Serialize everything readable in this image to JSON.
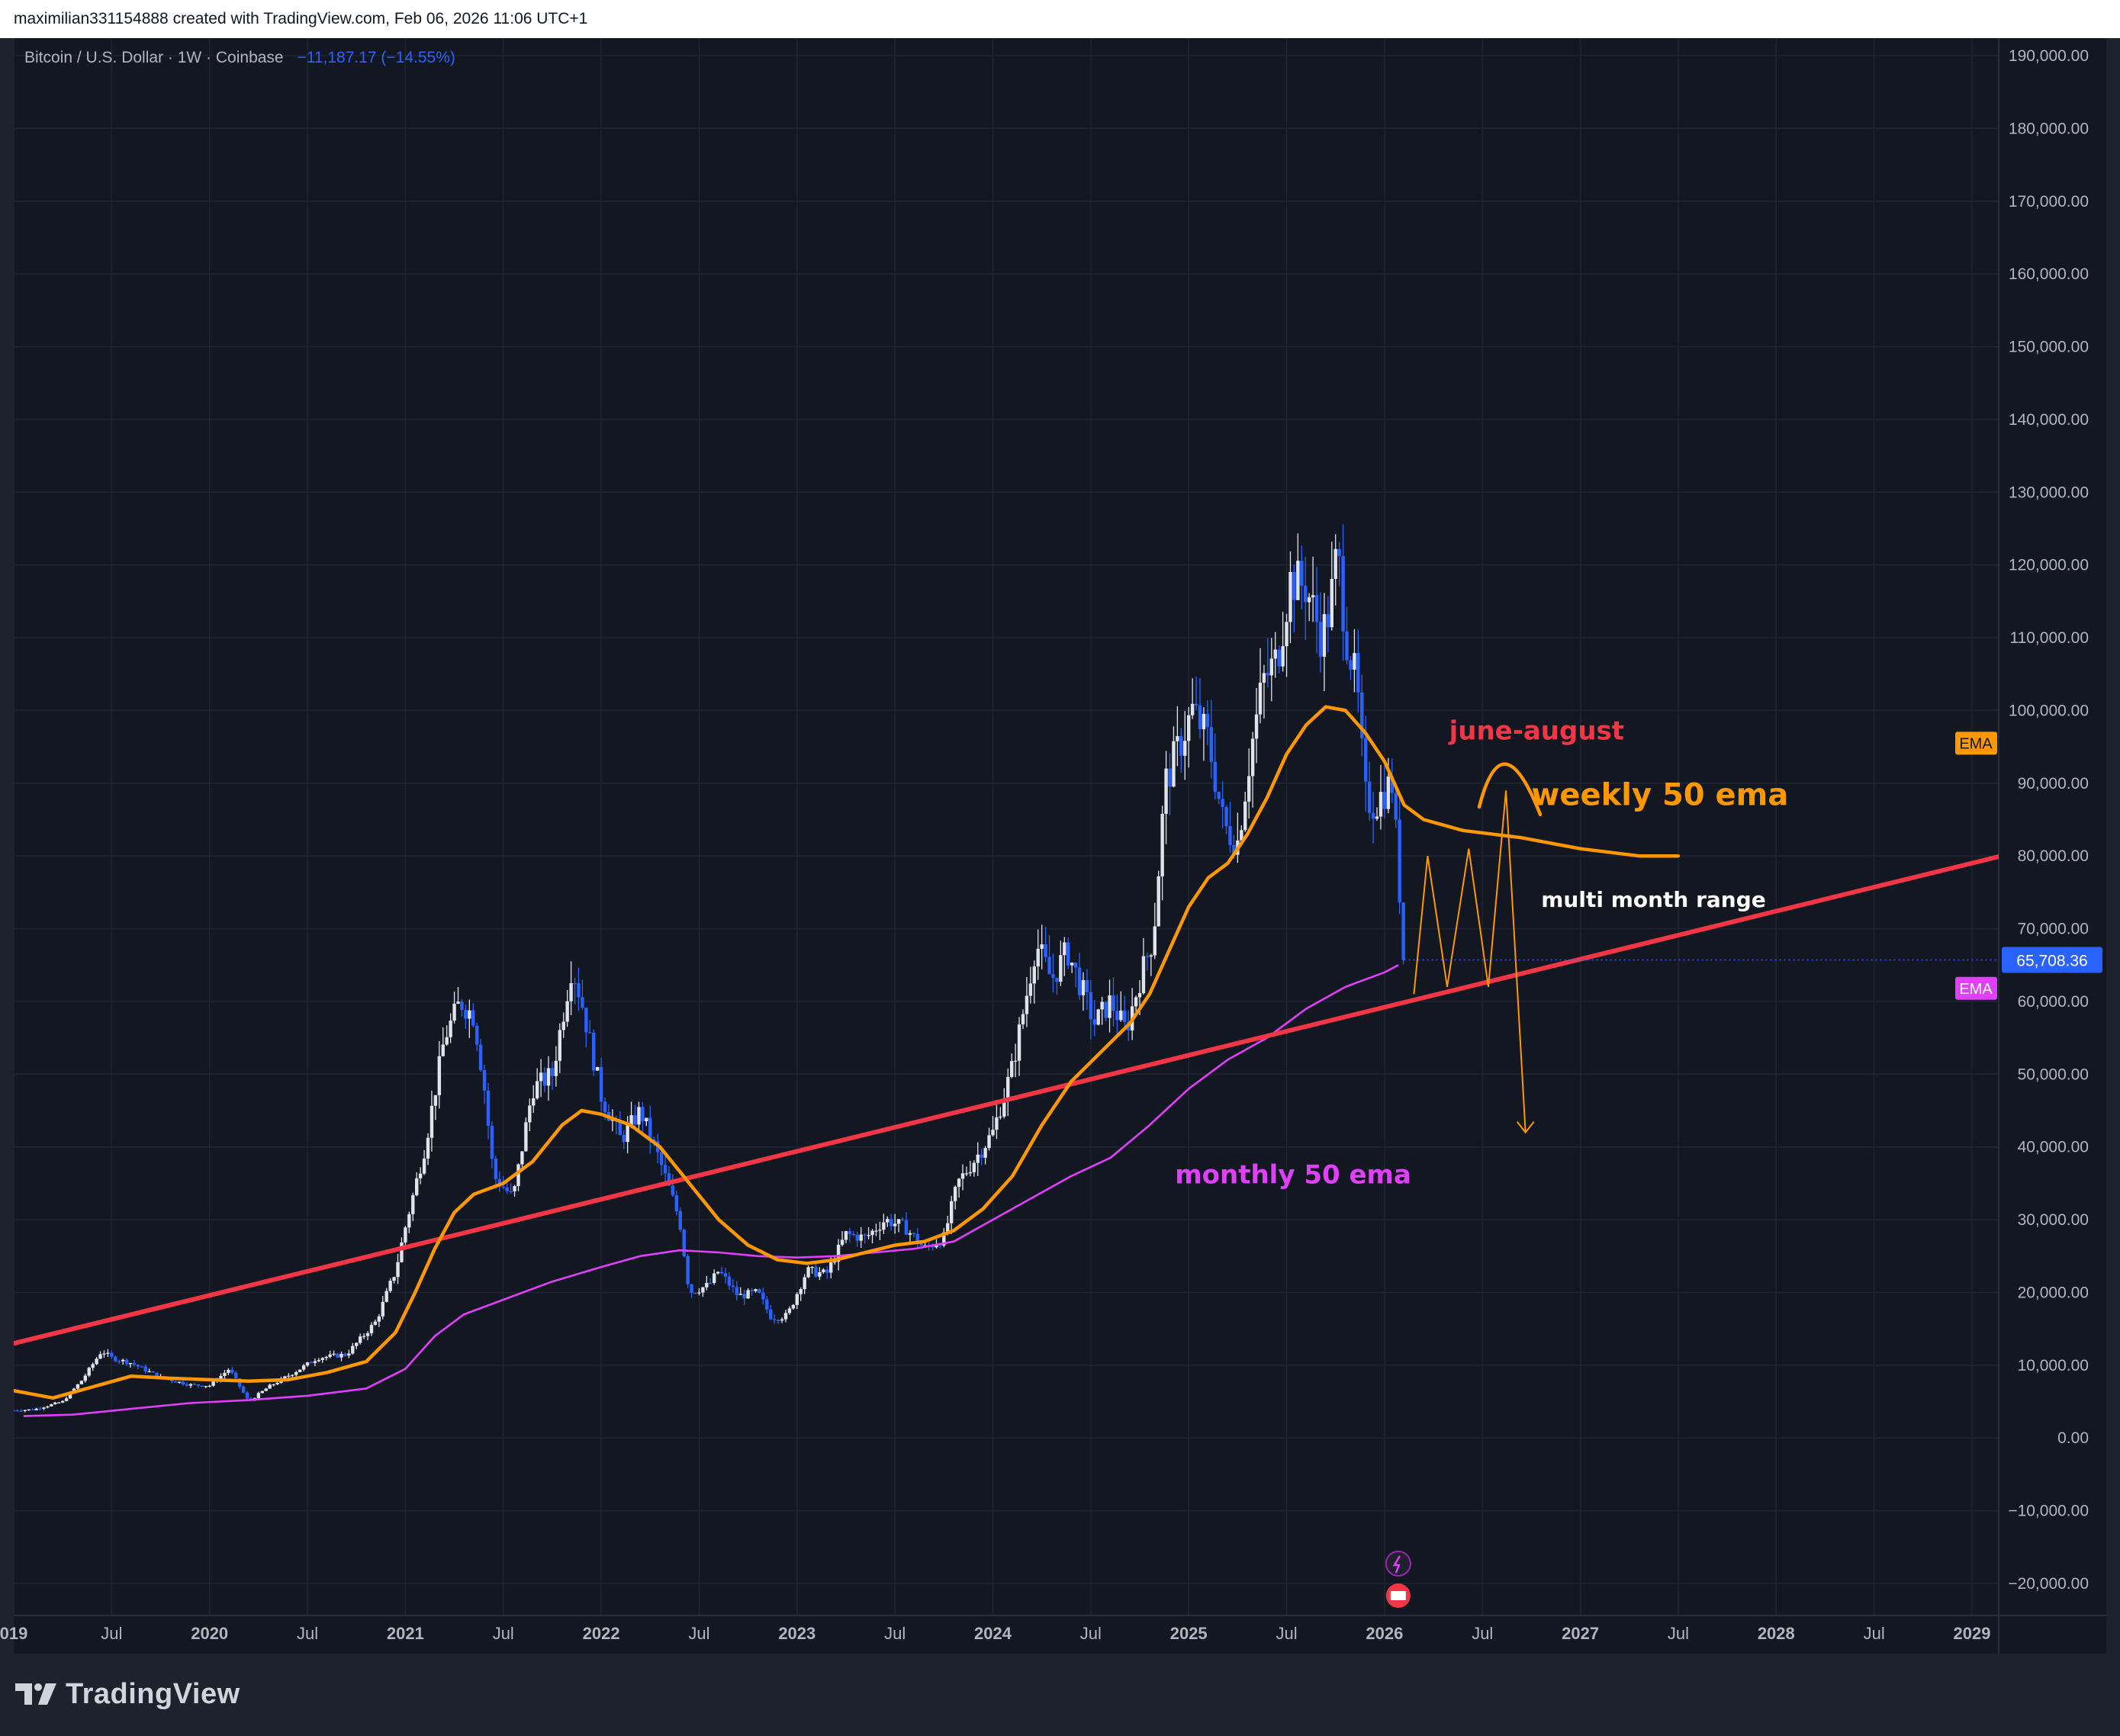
{
  "header": {
    "attribution": "maximilian331154888 created with TradingView.com, Feb 06, 2026 11:06 UTC+1"
  },
  "legend": {
    "symbol": "Bitcoin / U.S. Dollar · 1W · Coinbase",
    "change": "−11,187.17 (−14.55%)"
  },
  "footer": {
    "brand": "TradingView"
  },
  "colors": {
    "background": "#131722",
    "bull_candle": "#e0e3eb",
    "bear_candle": "#2962ff",
    "weekly_ema": "#ff9800",
    "monthly_ema": "#e040fb",
    "trendline": "#f23645",
    "last_price": "#2962ff"
  },
  "chart_data": {
    "type": "candlestick",
    "symbol": "Bitcoin / U.S. Dollar",
    "interval": "1W",
    "exchange": "Coinbase",
    "last_price": 65708.36,
    "last_price_label": "65,708.36",
    "ema_badge": "EMA",
    "ylim": [
      -23000,
      192000
    ],
    "xlim": [
      2019.0,
      2029.25
    ],
    "grid": true,
    "y_ticks": [
      "190,000.00",
      "180,000.00",
      "170,000.00",
      "160,000.00",
      "150,000.00",
      "140,000.00",
      "130,000.00",
      "120,000.00",
      "110,000.00",
      "100,000.00",
      "90,000.00",
      "80,000.00",
      "70,000.00",
      "60,000.00",
      "50,000.00",
      "40,000.00",
      "30,000.00",
      "20,000.00",
      "10,000.00",
      "0.00",
      "−10,000.00",
      "−20,000.00"
    ],
    "y_tick_values": [
      190000,
      180000,
      170000,
      160000,
      150000,
      140000,
      130000,
      120000,
      110000,
      100000,
      90000,
      80000,
      70000,
      60000,
      50000,
      40000,
      30000,
      20000,
      10000,
      0,
      -10000,
      -20000
    ],
    "x_ticks": [
      {
        "label": "019",
        "t": 2019.0
      },
      {
        "label": "Jul",
        "t": 2019.5
      },
      {
        "label": "2020",
        "t": 2020.0
      },
      {
        "label": "Jul",
        "t": 2020.5
      },
      {
        "label": "2021",
        "t": 2021.0
      },
      {
        "label": "Jul",
        "t": 2021.5
      },
      {
        "label": "2022",
        "t": 2022.0
      },
      {
        "label": "Jul",
        "t": 2022.5
      },
      {
        "label": "2023",
        "t": 2023.0
      },
      {
        "label": "Jul",
        "t": 2023.5
      },
      {
        "label": "2024",
        "t": 2024.0
      },
      {
        "label": "Jul",
        "t": 2024.5
      },
      {
        "label": "2025",
        "t": 2025.0
      },
      {
        "label": "Jul",
        "t": 2025.5
      },
      {
        "label": "2026",
        "t": 2026.0
      },
      {
        "label": "Jul",
        "t": 2026.5
      },
      {
        "label": "2027",
        "t": 2027.0
      },
      {
        "label": "Jul",
        "t": 2027.5
      },
      {
        "label": "2028",
        "t": 2028.0
      },
      {
        "label": "Jul",
        "t": 2028.5
      },
      {
        "label": "2029",
        "t": 2029.0
      }
    ],
    "price_path": [
      [
        2019.0,
        3800
      ],
      [
        2019.1,
        3900
      ],
      [
        2019.25,
        5000
      ],
      [
        2019.35,
        8000
      ],
      [
        2019.45,
        12000
      ],
      [
        2019.5,
        11000
      ],
      [
        2019.6,
        10300
      ],
      [
        2019.75,
        8300
      ],
      [
        2019.9,
        7300
      ],
      [
        2020.0,
        7200
      ],
      [
        2020.1,
        9500
      ],
      [
        2020.2,
        5000
      ],
      [
        2020.3,
        7000
      ],
      [
        2020.45,
        9300
      ],
      [
        2020.55,
        11000
      ],
      [
        2020.7,
        11500
      ],
      [
        2020.85,
        16000
      ],
      [
        2020.95,
        23000
      ],
      [
        2021.0,
        29000
      ],
      [
        2021.1,
        40000
      ],
      [
        2021.2,
        55000
      ],
      [
        2021.28,
        60000
      ],
      [
        2021.35,
        58000
      ],
      [
        2021.4,
        49000
      ],
      [
        2021.45,
        36000
      ],
      [
        2021.55,
        33000
      ],
      [
        2021.65,
        48000
      ],
      [
        2021.75,
        50000
      ],
      [
        2021.85,
        65000
      ],
      [
        2021.9,
        60000
      ],
      [
        2022.0,
        47000
      ],
      [
        2022.1,
        41000
      ],
      [
        2022.2,
        45000
      ],
      [
        2022.3,
        38000
      ],
      [
        2022.4,
        30000
      ],
      [
        2022.45,
        20000
      ],
      [
        2022.55,
        21000
      ],
      [
        2022.6,
        23000
      ],
      [
        2022.7,
        19500
      ],
      [
        2022.8,
        20000
      ],
      [
        2022.87,
        16500
      ],
      [
        2022.95,
        16800
      ],
      [
        2023.05,
        23000
      ],
      [
        2023.15,
        22500
      ],
      [
        2023.25,
        28000
      ],
      [
        2023.35,
        27500
      ],
      [
        2023.45,
        30000
      ],
      [
        2023.55,
        29000
      ],
      [
        2023.65,
        26000
      ],
      [
        2023.75,
        27500
      ],
      [
        2023.82,
        35000
      ],
      [
        2023.9,
        38000
      ],
      [
        2024.0,
        42000
      ],
      [
        2024.1,
        51000
      ],
      [
        2024.18,
        62000
      ],
      [
        2024.22,
        68000
      ],
      [
        2024.3,
        63000
      ],
      [
        2024.38,
        67000
      ],
      [
        2024.45,
        62000
      ],
      [
        2024.52,
        57000
      ],
      [
        2024.6,
        60000
      ],
      [
        2024.68,
        56000
      ],
      [
        2024.75,
        63000
      ],
      [
        2024.82,
        69000
      ],
      [
        2024.88,
        90000
      ],
      [
        2024.95,
        95000
      ],
      [
        2025.02,
        100000
      ],
      [
        2025.1,
        96000
      ],
      [
        2025.18,
        84000
      ],
      [
        2025.25,
        82000
      ],
      [
        2025.32,
        95000
      ],
      [
        2025.38,
        104000
      ],
      [
        2025.45,
        107000
      ],
      [
        2025.52,
        118000
      ],
      [
        2025.6,
        117000
      ],
      [
        2025.68,
        110000
      ],
      [
        2025.72,
        114000
      ],
      [
        2025.76,
        122000
      ],
      [
        2025.8,
        111000
      ],
      [
        2025.86,
        103000
      ],
      [
        2025.9,
        88000
      ],
      [
        2025.95,
        87000
      ],
      [
        2026.0,
        89000
      ],
      [
        2026.04,
        90000
      ],
      [
        2026.07,
        78000
      ],
      [
        2026.1,
        65700
      ]
    ],
    "weekly_ema_path": [
      [
        2019.0,
        6500
      ],
      [
        2019.2,
        5500
      ],
      [
        2019.4,
        7000
      ],
      [
        2019.6,
        8500
      ],
      [
        2019.8,
        8200
      ],
      [
        2020.0,
        8000
      ],
      [
        2020.2,
        7800
      ],
      [
        2020.4,
        8000
      ],
      [
        2020.6,
        9000
      ],
      [
        2020.8,
        10500
      ],
      [
        2020.95,
        14500
      ],
      [
        2021.05,
        20000
      ],
      [
        2021.15,
        26000
      ],
      [
        2021.25,
        31000
      ],
      [
        2021.35,
        33500
      ],
      [
        2021.5,
        35000
      ],
      [
        2021.65,
        38000
      ],
      [
        2021.8,
        43000
      ],
      [
        2021.9,
        45000
      ],
      [
        2022.0,
        44500
      ],
      [
        2022.15,
        43000
      ],
      [
        2022.3,
        40000
      ],
      [
        2022.45,
        35000
      ],
      [
        2022.6,
        30000
      ],
      [
        2022.75,
        26500
      ],
      [
        2022.9,
        24500
      ],
      [
        2023.05,
        24000
      ],
      [
        2023.2,
        24500
      ],
      [
        2023.35,
        25500
      ],
      [
        2023.5,
        26500
      ],
      [
        2023.65,
        27000
      ],
      [
        2023.8,
        28500
      ],
      [
        2023.95,
        31500
      ],
      [
        2024.1,
        36000
      ],
      [
        2024.25,
        43000
      ],
      [
        2024.4,
        49000
      ],
      [
        2024.55,
        53000
      ],
      [
        2024.7,
        57000
      ],
      [
        2024.8,
        61000
      ],
      [
        2024.9,
        67000
      ],
      [
        2025.0,
        73000
      ],
      [
        2025.1,
        77000
      ],
      [
        2025.2,
        79000
      ],
      [
        2025.3,
        83000
      ],
      [
        2025.4,
        88000
      ],
      [
        2025.5,
        94000
      ],
      [
        2025.6,
        98000
      ],
      [
        2025.7,
        100500
      ],
      [
        2025.8,
        100000
      ],
      [
        2025.9,
        97000
      ],
      [
        2026.0,
        93000
      ],
      [
        2026.1,
        87000
      ],
      [
        2026.2,
        85000
      ],
      [
        2026.4,
        83500
      ],
      [
        2026.7,
        82500
      ],
      [
        2027.0,
        81000
      ],
      [
        2027.3,
        80000
      ],
      [
        2027.5,
        80000
      ]
    ],
    "monthly_ema_path": [
      [
        2019.05,
        3000
      ],
      [
        2019.3,
        3200
      ],
      [
        2019.6,
        4000
      ],
      [
        2019.9,
        4800
      ],
      [
        2020.2,
        5200
      ],
      [
        2020.5,
        5800
      ],
      [
        2020.8,
        6800
      ],
      [
        2021.0,
        9500
      ],
      [
        2021.15,
        14000
      ],
      [
        2021.3,
        17000
      ],
      [
        2021.5,
        19000
      ],
      [
        2021.75,
        21500
      ],
      [
        2022.0,
        23500
      ],
      [
        2022.2,
        25000
      ],
      [
        2022.4,
        25800
      ],
      [
        2022.6,
        25500
      ],
      [
        2022.8,
        25000
      ],
      [
        2023.0,
        24800
      ],
      [
        2023.2,
        25000
      ],
      [
        2023.4,
        25500
      ],
      [
        2023.6,
        26000
      ],
      [
        2023.8,
        27000
      ],
      [
        2024.0,
        30000
      ],
      [
        2024.2,
        33000
      ],
      [
        2024.4,
        36000
      ],
      [
        2024.6,
        38500
      ],
      [
        2024.8,
        43000
      ],
      [
        2025.0,
        48000
      ],
      [
        2025.2,
        52000
      ],
      [
        2025.4,
        55000
      ],
      [
        2025.6,
        59000
      ],
      [
        2025.8,
        62000
      ],
      [
        2026.0,
        64000
      ],
      [
        2026.07,
        65000
      ]
    ],
    "trendline": {
      "from": [
        2019.0,
        13000
      ],
      "to": [
        2029.15,
        80000
      ]
    },
    "projection_zigzag": [
      [
        2026.15,
        61000
      ],
      [
        2026.22,
        80000
      ],
      [
        2026.32,
        62000
      ],
      [
        2026.43,
        81000
      ],
      [
        2026.53,
        62000
      ],
      [
        2026.62,
        89000
      ],
      [
        2026.72,
        42000
      ]
    ],
    "june_august_arc": {
      "center": [
        2026.62,
        88000
      ],
      "label": "june-august"
    },
    "annotations": [
      {
        "text": "june-august",
        "x": 2026.33,
        "y": 96000,
        "color": "#f23645"
      },
      {
        "text": "weekly 50 ema",
        "x": 2026.75,
        "y": 87000,
        "color": "#ff9800"
      },
      {
        "text": "multi month range",
        "x": 2026.8,
        "y": 73000,
        "color": "#ffffff"
      },
      {
        "text": "monthly 50 ema",
        "x": 2024.93,
        "y": 35000,
        "color": "#e040fb"
      }
    ],
    "ema_badges": [
      {
        "text": "EMA",
        "y": 95500,
        "color": "#ff9800"
      },
      {
        "text": "EMA",
        "y": 61800,
        "color": "#e040fb"
      }
    ]
  }
}
